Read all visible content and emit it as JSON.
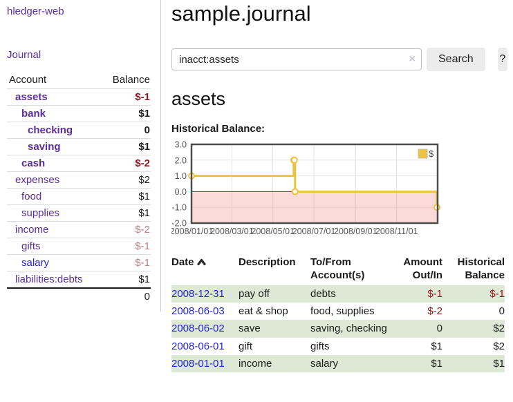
{
  "colors": {
    "link_purple": "#5a2ca0",
    "link_blue": "#2424dd",
    "negative_strong": "#8b1a1a",
    "negative_muted": "#bc7d7d",
    "row_stripe_green": "#dde9d5",
    "series_yellow": "#edc240",
    "chart_negative_region": "#f79e9e",
    "chart_zero_line": "#8b2020",
    "chart_border": "#4d4d4d",
    "chart_grid": "#e3e3e3"
  },
  "sidebar": {
    "brand": "hledger-web",
    "journal_link": "Journal",
    "accounts_table": {
      "headers": [
        "Account",
        "Balance"
      ],
      "rows": [
        {
          "account": "assets",
          "depth": 1,
          "bold": true,
          "balance": "$-1",
          "balance_class": "neg"
        },
        {
          "account": "bank",
          "depth": 2,
          "bold": true,
          "balance": "$1",
          "balance_class": ""
        },
        {
          "account": "checking",
          "depth": 3,
          "bold": true,
          "balance": "0",
          "balance_class": ""
        },
        {
          "account": "saving",
          "depth": 3,
          "bold": true,
          "balance": "$1",
          "balance_class": ""
        },
        {
          "account": "cash",
          "depth": 2,
          "bold": true,
          "balance": "$-2",
          "balance_class": "neg"
        },
        {
          "account": "expenses",
          "depth": 1,
          "bold": false,
          "balance": "$2",
          "balance_class": ""
        },
        {
          "account": "food",
          "depth": 2,
          "bold": false,
          "balance": "$1",
          "balance_class": ""
        },
        {
          "account": "supplies",
          "depth": 2,
          "bold": false,
          "balance": "$1",
          "balance_class": ""
        },
        {
          "account": "income",
          "depth": 1,
          "bold": false,
          "balance": "$-2",
          "balance_class": "neg-muted"
        },
        {
          "account": "gifts",
          "depth": 2,
          "bold": false,
          "balance": "$-1",
          "balance_class": "neg-muted"
        },
        {
          "account": "salary",
          "depth": 2,
          "bold": false,
          "balance": "$-1",
          "balance_class": "neg-muted",
          "link_class": "blue"
        },
        {
          "account": "liabilities:debts",
          "depth": 1,
          "bold": false,
          "balance": "$1",
          "balance_class": ""
        }
      ],
      "total": "0"
    }
  },
  "main": {
    "title": "sample.journal",
    "search": {
      "value": "inacct:assets",
      "clear_icon": "×",
      "button_label": "Search",
      "help_label": "?"
    },
    "account_heading": "assets",
    "chart_label": "Historical Balance:"
  },
  "chart_data": {
    "type": "line",
    "title": "Historical Balance:",
    "x_type": "date",
    "x_range": [
      "2008-01-01",
      "2009-01-01"
    ],
    "ylim": [
      -2.0,
      3.0
    ],
    "yticks": [
      3.0,
      2.0,
      1.0,
      0.0,
      -1.0,
      -2.0
    ],
    "ytick_labels": [
      "3.0",
      "2.0",
      "1.0",
      "0.0",
      "-1.0",
      "-2.0"
    ],
    "xticks": [
      {
        "date": "2008-01-01",
        "label": "2008/01/01"
      },
      {
        "date": "2008-03-01",
        "label": "2008/03/01"
      },
      {
        "date": "2008-05-01",
        "label": "2008/05/01"
      },
      {
        "date": "2008-07-01",
        "label": "2008/07/01"
      },
      {
        "date": "2008-09-01",
        "label": "2008/09/01"
      },
      {
        "date": "2008-11-01",
        "label": "2008/11/01"
      }
    ],
    "grid": true,
    "legend_position": "top-right",
    "series": [
      {
        "name": "$",
        "color": "#edc240",
        "step": true,
        "points": [
          [
            "2008-01-01",
            1
          ],
          [
            "2008-06-01",
            2
          ],
          [
            "2008-06-02",
            2
          ],
          [
            "2008-06-03",
            0
          ],
          [
            "2008-12-31",
            -1
          ]
        ]
      }
    ],
    "negative_region": {
      "from": 0,
      "to": -2
    }
  },
  "register": {
    "headers": [
      "Date",
      "Description",
      "To/From Account(s)",
      "Amount Out/In",
      "Historical Balance"
    ],
    "rows": [
      {
        "date": "2008-12-31",
        "description": "pay off",
        "accounts": "debts",
        "amount": "$-1",
        "amount_class": "neg",
        "balance": "$-1",
        "balance_class": "neg"
      },
      {
        "date": "2008-06-03",
        "description": "eat & shop",
        "accounts": "food, supplies",
        "amount": "$-2",
        "amount_class": "neg",
        "balance": "0",
        "balance_class": ""
      },
      {
        "date": "2008-06-02",
        "description": "save",
        "accounts": "saving, checking",
        "amount": "0",
        "amount_class": "",
        "balance": "$2",
        "balance_class": ""
      },
      {
        "date": "2008-06-01",
        "description": "gift",
        "accounts": "gifts",
        "amount": "$1",
        "amount_class": "",
        "balance": "$2",
        "balance_class": ""
      },
      {
        "date": "2008-01-01",
        "description": "income",
        "accounts": "salary",
        "amount": "$1",
        "amount_class": "",
        "balance": "$1",
        "balance_class": ""
      }
    ]
  }
}
